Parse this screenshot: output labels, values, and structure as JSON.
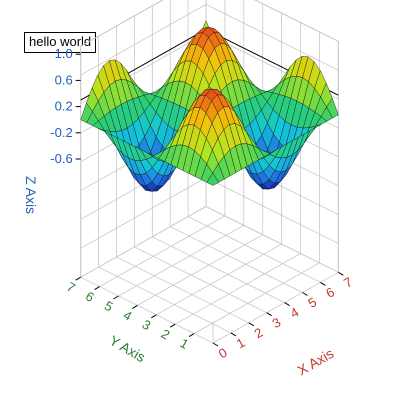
{
  "label_box": "hello world",
  "chart_data": {
    "type": "surface3d",
    "function": "sin(x) * sin(y) over x in [0, 7], y in [0, 7]",
    "grid_n": 22,
    "x": {
      "label": "X Axis",
      "range": [
        0,
        7
      ],
      "ticks": [
        0,
        1,
        2,
        3,
        4,
        5,
        6,
        7
      ],
      "color": "#c0392b"
    },
    "y": {
      "label": "Y Axis",
      "range": [
        0,
        7
      ],
      "ticks": [
        1,
        2,
        3,
        4,
        5,
        6,
        7
      ],
      "color": "#2e7d32"
    },
    "z": {
      "label": "Z Axis",
      "range": [
        -1,
        1
      ],
      "ticks": [
        "1.0",
        "0.6",
        "0.2",
        "-0.2",
        "-0.6"
      ],
      "color": "#1f5fbf"
    },
    "grid": true,
    "colormap": [
      "#0a0a8c",
      "#1f6fe0",
      "#14c7d8",
      "#2ecf6b",
      "#b7e61e",
      "#f3c20b",
      "#e8451a"
    ]
  }
}
